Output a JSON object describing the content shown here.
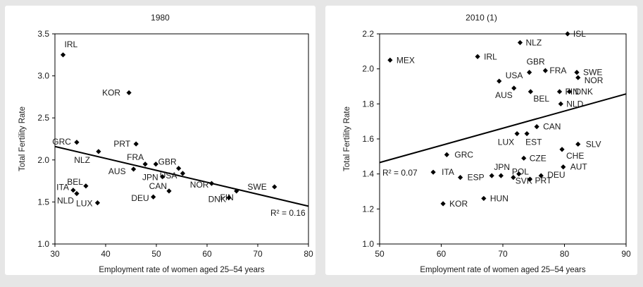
{
  "chart_data": [
    {
      "type": "scatter",
      "title": "1980",
      "xlabel": "Employment rate of women aged 25–54 years",
      "ylabel": "Total Fertility Rate",
      "xlim": [
        30,
        80
      ],
      "ylim": [
        1.0,
        3.5
      ],
      "xticks": [
        "30",
        "40",
        "50",
        "60",
        "70",
        "80"
      ],
      "yticks": [
        "1.0",
        "1.5",
        "2.0",
        "2.5",
        "3.0",
        "3.5"
      ],
      "grid": false,
      "r2_label": "R² = 0.16",
      "trendline": {
        "x": [
          30,
          80
        ],
        "y": [
          2.16,
          1.45
        ]
      },
      "points": [
        {
          "label": "IRL",
          "x": 31.6,
          "y": 3.25
        },
        {
          "label": "KOR",
          "x": 44.6,
          "y": 2.8
        },
        {
          "label": "GRC",
          "x": 34.3,
          "y": 2.21
        },
        {
          "label": "NLZ",
          "x": 38.6,
          "y": 2.1
        },
        {
          "label": "PRT",
          "x": 46.0,
          "y": 2.19
        },
        {
          "label": "FRA",
          "x": 47.8,
          "y": 1.95
        },
        {
          "label": "",
          "x": 49.9,
          "y": 1.95
        },
        {
          "label": "AUS",
          "x": 45.5,
          "y": 1.89
        },
        {
          "label": "GBR",
          "x": 54.4,
          "y": 1.9
        },
        {
          "label": "JPN",
          "x": 51.2,
          "y": 1.8
        },
        {
          "label": "USA",
          "x": 55.2,
          "y": 1.84
        },
        {
          "label": "ITA",
          "x": 33.6,
          "y": 1.64
        },
        {
          "label": "BEL",
          "x": 36.1,
          "y": 1.69
        },
        {
          "label": "NLD",
          "x": 34.3,
          "y": 1.6
        },
        {
          "label": "LUX",
          "x": 38.4,
          "y": 1.49
        },
        {
          "label": "CAN",
          "x": 52.5,
          "y": 1.63
        },
        {
          "label": "DEU",
          "x": 49.4,
          "y": 1.56
        },
        {
          "label": "NOR",
          "x": 60.9,
          "y": 1.72
        },
        {
          "label": "FIN",
          "x": 65.8,
          "y": 1.63
        },
        {
          "label": "DNK",
          "x": 64.3,
          "y": 1.55
        },
        {
          "label": "SWE",
          "x": 73.3,
          "y": 1.68
        }
      ]
    },
    {
      "type": "scatter",
      "title": "2010 (1)",
      "xlabel": "Employment rate of women aged 25–54 years",
      "ylabel": "Total Fertility Rate",
      "xlim": [
        50,
        90
      ],
      "ylim": [
        1.0,
        2.2
      ],
      "xticks": [
        "50",
        "60",
        "70",
        "80",
        "90"
      ],
      "yticks": [
        "1.0",
        "1.2",
        "1.4",
        "1.6",
        "1.8",
        "2.0",
        "2.2"
      ],
      "grid": false,
      "r2_label": "R² = 0.07",
      "trendline": {
        "x": [
          50,
          90
        ],
        "y": [
          1.465,
          1.857
        ]
      },
      "points": [
        {
          "label": "ISL",
          "x": 80.5,
          "y": 2.2
        },
        {
          "label": "NLZ",
          "x": 72.8,
          "y": 2.15
        },
        {
          "label": "MEX",
          "x": 51.7,
          "y": 2.05
        },
        {
          "label": "IRL",
          "x": 65.9,
          "y": 2.07
        },
        {
          "label": "GBR",
          "x": 74.3,
          "y": 1.98
        },
        {
          "label": "FRA",
          "x": 76.9,
          "y": 1.99
        },
        {
          "label": "SWE",
          "x": 82.0,
          "y": 1.98
        },
        {
          "label": "NOR",
          "x": 82.2,
          "y": 1.95
        },
        {
          "label": "USA",
          "x": 69.4,
          "y": 1.93
        },
        {
          "label": "AUS",
          "x": 71.8,
          "y": 1.89
        },
        {
          "label": "BEL",
          "x": 74.5,
          "y": 1.87
        },
        {
          "label": "FIN",
          "x": 79.2,
          "y": 1.87
        },
        {
          "label": "DNK",
          "x": 80.8,
          "y": 1.87
        },
        {
          "label": "NLD",
          "x": 79.4,
          "y": 1.8
        },
        {
          "label": "CAN",
          "x": 75.5,
          "y": 1.67
        },
        {
          "label": "LUX",
          "x": 72.3,
          "y": 1.63
        },
        {
          "label": "EST",
          "x": 73.9,
          "y": 1.63
        },
        {
          "label": "SLV",
          "x": 82.2,
          "y": 1.57
        },
        {
          "label": "CHE",
          "x": 79.6,
          "y": 1.54
        },
        {
          "label": "GRC",
          "x": 60.9,
          "y": 1.51
        },
        {
          "label": "CZE",
          "x": 73.4,
          "y": 1.49
        },
        {
          "label": "ITA",
          "x": 58.7,
          "y": 1.41
        },
        {
          "label": "JPN",
          "x": 69.7,
          "y": 1.39
        },
        {
          "label": "",
          "x": 68.2,
          "y": 1.39
        },
        {
          "label": "ESP",
          "x": 63.1,
          "y": 1.38
        },
        {
          "label": "POL",
          "x": 71.7,
          "y": 1.38
        },
        {
          "label": "SVK",
          "x": 72.6,
          "y": 1.4
        },
        {
          "label": "DEU",
          "x": 76.2,
          "y": 1.39
        },
        {
          "label": "PRT",
          "x": 74.4,
          "y": 1.37
        },
        {
          "label": "AUT",
          "x": 79.8,
          "y": 1.44
        },
        {
          "label": "HUN",
          "x": 66.9,
          "y": 1.26
        },
        {
          "label": "KOR",
          "x": 60.3,
          "y": 1.23
        }
      ]
    }
  ]
}
